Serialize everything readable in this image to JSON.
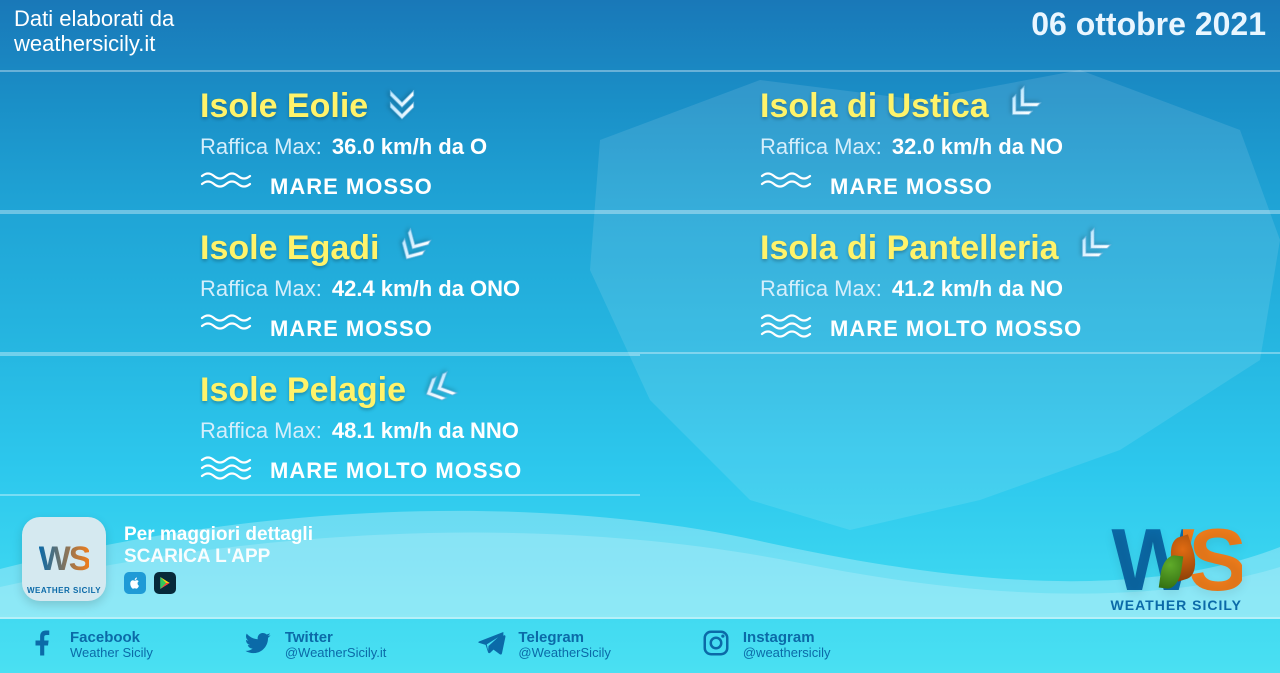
{
  "colors": {
    "accent_yellow": "#fff36a",
    "text_white": "#ffffff",
    "brand_blue": "#0b6aa8",
    "brand_orange": "#f07d1b",
    "bg_gradient_top": "#1978b8",
    "bg_gradient_bottom": "#4ae0f2",
    "divider": "rgba(255,255,255,0.35)"
  },
  "header": {
    "source_line1": "Dati elaborati da",
    "source_line2": "weathersicily.it",
    "date": "06 ottobre 2021"
  },
  "labels": {
    "gust_label": "Raffica Max:"
  },
  "islands": [
    {
      "name": "Isole Eolie",
      "gust": "36.0 km/h da O",
      "sea": "MARE MOSSO",
      "wave_level": 2,
      "dir_deg": 90
    },
    {
      "name": "Isola di Ustica",
      "gust": "32.0 km/h da NO",
      "sea": "MARE MOSSO",
      "wave_level": 2,
      "dir_deg": 135
    },
    {
      "name": "Isole Egadi",
      "gust": "42.4 km/h da ONO",
      "sea": "MARE MOSSO",
      "wave_level": 2,
      "dir_deg": 120
    },
    {
      "name": "Isola di Pantelleria",
      "gust": "41.2 km/h da NO",
      "sea": "MARE MOLTO MOSSO",
      "wave_level": 3,
      "dir_deg": 135
    },
    {
      "name": "Isole Pelagie",
      "gust": "48.1 km/h da NNO",
      "sea": "MARE MOLTO MOSSO",
      "wave_level": 3,
      "dir_deg": 155
    }
  ],
  "app": {
    "line1": "Per maggiori dettagli",
    "line2": "SCARICA L'APP",
    "badge_text": "WS",
    "badge_sub": "WEATHER SICILY"
  },
  "logo": {
    "text": "WS",
    "subtitle": "WEATHER SICILY"
  },
  "social": [
    {
      "icon": "facebook",
      "title": "Facebook",
      "handle": "Weather Sicily"
    },
    {
      "icon": "twitter",
      "title": "Twitter",
      "handle": "@WeatherSicily.it"
    },
    {
      "icon": "telegram",
      "title": "Telegram",
      "handle": "@WeatherSicily"
    },
    {
      "icon": "instagram",
      "title": "Instagram",
      "handle": "@weathersicily"
    }
  ]
}
